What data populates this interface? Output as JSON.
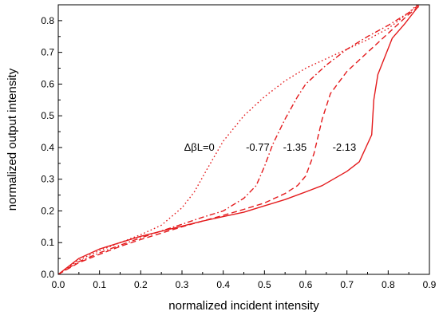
{
  "chart_data": {
    "type": "line",
    "title": "",
    "xlabel": "normalized incident intensity",
    "ylabel": "normalized output intensity",
    "xlim": [
      0.0,
      0.9
    ],
    "ylim": [
      0.0,
      0.85
    ],
    "xticks": [
      0.0,
      0.1,
      0.2,
      0.3,
      0.4,
      0.5,
      0.6,
      0.7,
      0.8,
      0.9
    ],
    "xtick_labels": [
      "0.0",
      "0.1",
      "0.2",
      "0.3",
      "0.4",
      "0.5",
      "0.6",
      "0.7",
      "0.8",
      "0.9"
    ],
    "yticks": [
      0.0,
      0.1,
      0.2,
      0.3,
      0.4,
      0.5,
      0.6,
      0.7,
      0.8
    ],
    "ytick_labels": [
      "0.0",
      "0.1",
      "0.2",
      "0.3",
      "0.4",
      "0.5",
      "0.6",
      "0.7",
      "0.8"
    ],
    "grid": false,
    "legend": "none",
    "line_color": "#e41a1c",
    "series": [
      {
        "label": "ΔβL=0",
        "dash": "dotted",
        "x": [
          0.0,
          0.05,
          0.1,
          0.15,
          0.2,
          0.25,
          0.3,
          0.33,
          0.36,
          0.4,
          0.45,
          0.5,
          0.55,
          0.6,
          0.65,
          0.7,
          0.75,
          0.8,
          0.85,
          0.87
        ],
        "y": [
          0.0,
          0.045,
          0.075,
          0.1,
          0.125,
          0.155,
          0.21,
          0.26,
          0.33,
          0.42,
          0.5,
          0.56,
          0.61,
          0.65,
          0.68,
          0.71,
          0.74,
          0.775,
          0.825,
          0.85
        ]
      },
      {
        "label": "-0.77",
        "dash": "dashdot",
        "x": [
          0.0,
          0.05,
          0.1,
          0.15,
          0.2,
          0.25,
          0.3,
          0.35,
          0.4,
          0.45,
          0.48,
          0.5,
          0.52,
          0.55,
          0.58,
          0.6,
          0.65,
          0.7,
          0.75,
          0.8,
          0.85,
          0.875
        ],
        "y": [
          0.0,
          0.04,
          0.068,
          0.092,
          0.115,
          0.137,
          0.158,
          0.18,
          0.2,
          0.24,
          0.28,
          0.34,
          0.41,
          0.49,
          0.56,
          0.6,
          0.66,
          0.71,
          0.75,
          0.785,
          0.825,
          0.85
        ]
      },
      {
        "label": "-1.35",
        "dash": "dashed",
        "x": [
          0.0,
          0.05,
          0.1,
          0.15,
          0.2,
          0.25,
          0.3,
          0.35,
          0.4,
          0.45,
          0.5,
          0.55,
          0.58,
          0.6,
          0.62,
          0.64,
          0.66,
          0.7,
          0.75,
          0.8,
          0.85,
          0.88
        ],
        "y": [
          0.0,
          0.037,
          0.063,
          0.088,
          0.11,
          0.13,
          0.15,
          0.168,
          0.186,
          0.205,
          0.225,
          0.255,
          0.28,
          0.31,
          0.38,
          0.49,
          0.57,
          0.64,
          0.7,
          0.76,
          0.82,
          0.85
        ]
      },
      {
        "label": "-2.13",
        "dash": "solid",
        "x": [
          0.0,
          0.05,
          0.1,
          0.15,
          0.2,
          0.25,
          0.3,
          0.35,
          0.4,
          0.45,
          0.5,
          0.55,
          0.6,
          0.64,
          0.7,
          0.73,
          0.76,
          0.765,
          0.775,
          0.81,
          0.84,
          0.87
        ],
        "y": [
          0.0,
          0.05,
          0.08,
          0.1,
          0.12,
          0.136,
          0.152,
          0.168,
          0.182,
          0.196,
          0.216,
          0.236,
          0.26,
          0.28,
          0.325,
          0.355,
          0.44,
          0.55,
          0.63,
          0.745,
          0.79,
          0.84
        ]
      }
    ],
    "annotations": [
      {
        "text": "ΔβL=0",
        "x": 0.305,
        "y": 0.39
      },
      {
        "text": "-0.77",
        "x": 0.455,
        "y": 0.39
      },
      {
        "text": "-1.35",
        "x": 0.545,
        "y": 0.39
      },
      {
        "text": "-2.13",
        "x": 0.665,
        "y": 0.39
      }
    ]
  }
}
